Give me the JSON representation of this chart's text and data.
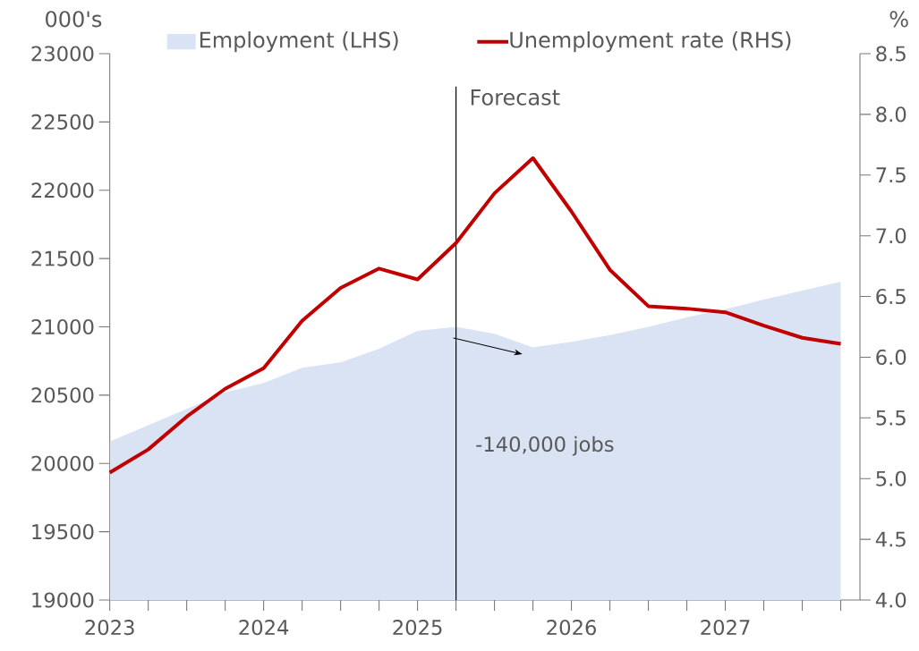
{
  "chart_data": {
    "type": "line",
    "ylabel": "000's",
    "y2label": "%",
    "x": [
      2023,
      2023.25,
      2023.5,
      2023.75,
      2024,
      2024.25,
      2024.5,
      2024.75,
      2025,
      2025.25,
      2025.5,
      2025.75,
      2026,
      2026.25,
      2026.5,
      2026.75,
      2027,
      2027.25,
      2027.5,
      2027.75
    ],
    "series": [
      {
        "name": "Employment (LHS)",
        "type": "area",
        "axis": "y",
        "color": "#dae3f3",
        "values": [
          20160,
          20280,
          20400,
          20520,
          20590,
          20700,
          20740,
          20840,
          20970,
          21000,
          20950,
          20850,
          20890,
          20940,
          21000,
          21070,
          21130,
          21200,
          21265,
          21330
        ]
      },
      {
        "name": "Unemployment rate (RHS)",
        "axis": "y2",
        "color": "#c00000",
        "values": [
          5.05,
          5.24,
          5.51,
          5.74,
          5.91,
          6.3,
          6.57,
          6.73,
          6.64,
          6.94,
          7.35,
          7.64,
          7.2,
          6.72,
          6.42,
          6.4,
          6.37,
          6.26,
          6.16,
          6.11
        ]
      }
    ],
    "xlim": [
      2023,
      2027.875
    ],
    "xticks": [
      2023,
      {
        "value": 2023.25,
        "label": null
      },
      {
        "value": 2023.5,
        "label": null
      },
      {
        "value": 2023.75,
        "label": null
      },
      2024,
      {
        "value": 2024.25,
        "label": null
      },
      {
        "value": 2024.5,
        "label": null
      },
      {
        "value": 2024.75,
        "label": null
      },
      2025,
      {
        "value": 2025.25,
        "label": null
      },
      {
        "value": 2025.5,
        "label": null
      },
      {
        "value": 2025.75,
        "label": null
      },
      2026,
      {
        "value": 2026.25,
        "label": null
      },
      {
        "value": 2026.5,
        "label": null
      },
      {
        "value": 2026.75,
        "label": null
      },
      2027,
      {
        "value": 2027.25,
        "label": null
      },
      {
        "value": 2027.5,
        "label": null
      },
      {
        "value": 2027.75,
        "label": null
      }
    ],
    "ylim": [
      19000,
      23000
    ],
    "yticks": [
      19000,
      19500,
      20000,
      20500,
      21000,
      21500,
      22000,
      22500,
      23000
    ],
    "y2lim": [
      4,
      8.5
    ],
    "y2ticks": [
      {
        "value": 4,
        "label": "4.0"
      },
      {
        "value": 4.5,
        "label": "4.5"
      },
      {
        "value": 5,
        "label": "5.0"
      },
      {
        "value": 5.5,
        "label": "5.5"
      },
      {
        "value": 6,
        "label": "6.0"
      },
      {
        "value": 6.5,
        "label": "6.5"
      },
      {
        "value": 7,
        "label": "7.0"
      },
      {
        "value": 7.5,
        "label": "7.5"
      },
      {
        "value": 8,
        "label": "8.0"
      },
      {
        "value": 8.5,
        "label": "8.5"
      }
    ],
    "ref_lines": [
      {
        "axis": "x",
        "value": 2025.25,
        "label": "Forecast",
        "color": "#000000"
      }
    ],
    "annotations": [
      "-140,000 jobs"
    ],
    "legend": "top",
    "marker": "none"
  }
}
